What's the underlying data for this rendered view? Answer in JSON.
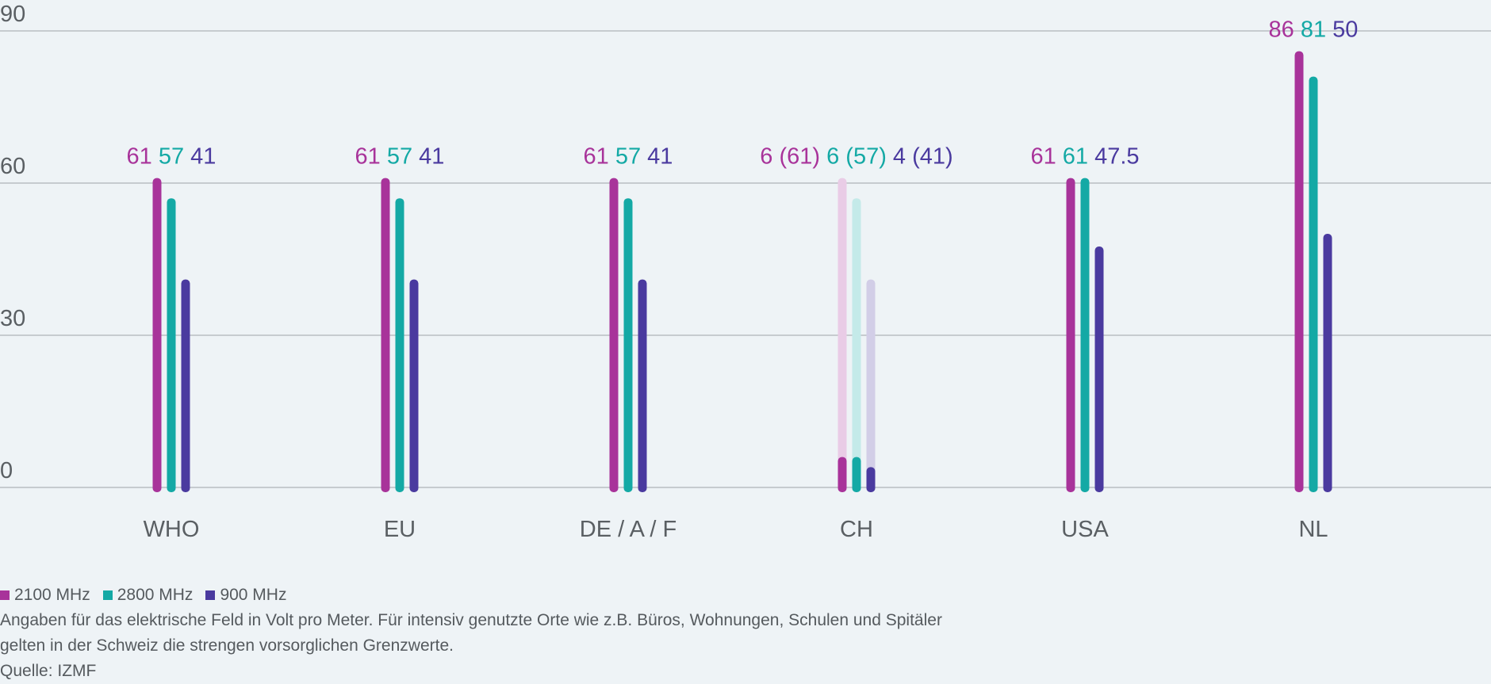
{
  "colors": {
    "background": "#eef3f6",
    "grid": "#b9bec2",
    "axis_text": "#5a5f63",
    "series": [
      "#a8339a",
      "#14a9a5",
      "#4a3a9f"
    ]
  },
  "chart_data": {
    "type": "bar",
    "title": "",
    "xlabel": "",
    "ylabel": "",
    "ylim": [
      0,
      90
    ],
    "yticks": [
      0,
      30,
      60,
      90
    ],
    "categories": [
      "WHO",
      "EU",
      "DE / A / F",
      "CH",
      "USA",
      "NL"
    ],
    "series": [
      {
        "name": "2100 MHz",
        "values": [
          61,
          61,
          61,
          6,
          61,
          86
        ]
      },
      {
        "name": "2800 MHz",
        "values": [
          57,
          57,
          57,
          6,
          61,
          81
        ]
      },
      {
        "name": "900 MHz",
        "values": [
          41,
          41,
          41,
          4,
          47.5,
          50
        ]
      }
    ],
    "ghost_values": {
      "category": "CH",
      "values": [
        61,
        57,
        41
      ]
    },
    "value_labels": [
      [
        "61",
        "57",
        "41"
      ],
      [
        "61",
        "57",
        "41"
      ],
      [
        "61",
        "57",
        "41"
      ],
      [
        "6 (61)",
        "6 (57)",
        "4 (41)"
      ],
      [
        "61",
        "61",
        "47.5"
      ],
      [
        "86",
        "81",
        "50"
      ]
    ],
    "legend_position": "bottom-left",
    "grid": true
  },
  "footer": {
    "note_line1": "Angaben für das elektrische Feld in Volt pro Meter. Für intensiv genutzte Orte wie z.B. Büros, Wohnungen, Schulen und Spitäler",
    "note_line2": "gelten in der Schweiz die strengen vorsorglichen Grenzwerte.",
    "source": "Quelle: IZMF"
  }
}
